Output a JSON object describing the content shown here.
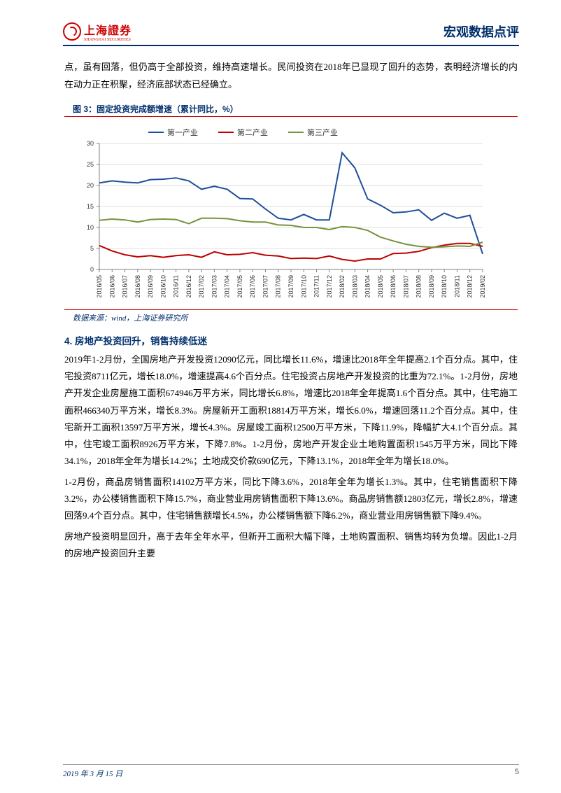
{
  "header": {
    "logo_text": "上海證券",
    "logo_sub": "SHANGHAI SECURITIES",
    "title": "宏观数据点评"
  },
  "intro_paragraph": "点，虽有回落，但仍高于全部投资，维持高速增长。民间投资在2018年已显现了回升的态势，表明经济增长的内在动力正在积聚，经济底部状态已经确立。",
  "chart": {
    "title": "图 3：固定投资完成额增速（累计同比，%）",
    "source": "数据来源：wind，上海证券研究所",
    "type": "line",
    "background_color": "#ffffff",
    "grid_color": "#bfbfbf",
    "axis_color": "#808080",
    "ylim": [
      0,
      30
    ],
    "ytick_step": 5,
    "yticks": [
      0,
      5,
      10,
      15,
      20,
      25,
      30
    ],
    "y_fontsize": 9,
    "x_fontsize": 9,
    "legend_fontsize": 11,
    "line_width": 2,
    "marker": "none",
    "x_labels": [
      "2016/05",
      "2016/06",
      "2016/07",
      "2016/08",
      "2016/09",
      "2016/10",
      "2016/11",
      "2016/12",
      "2017/02",
      "2017/03",
      "2017/04",
      "2017/05",
      "2017/06",
      "2017/07",
      "2017/08",
      "2017/09",
      "2017/10",
      "2017/11",
      "2017/12",
      "2018/02",
      "2018/03",
      "2018/04",
      "2018/05",
      "2018/06",
      "2018/07",
      "2018/08",
      "2018/09",
      "2018/10",
      "2018/11",
      "2018/12",
      "2019/02"
    ],
    "series": [
      {
        "name": "第一产业",
        "color": "#1f4e9c",
        "values": [
          20.6,
          21.1,
          20.8,
          20.6,
          21.4,
          21.5,
          21.8,
          21.1,
          19.1,
          19.8,
          19.1,
          16.9,
          16.8,
          14.4,
          12.2,
          11.8,
          13.1,
          11.8,
          11.8,
          27.8,
          24.2,
          16.8,
          15.3,
          13.5,
          13.7,
          14.2,
          11.7,
          13.4,
          12.2,
          12.9,
          3.7
        ]
      },
      {
        "name": "第二产业",
        "color": "#c00000",
        "values": [
          5.7,
          4.4,
          3.5,
          3.0,
          3.3,
          2.9,
          3.3,
          3.5,
          2.9,
          4.2,
          3.5,
          3.6,
          4.0,
          3.4,
          3.2,
          2.6,
          2.7,
          2.6,
          3.2,
          2.4,
          2.0,
          2.5,
          2.5,
          3.8,
          3.9,
          4.3,
          5.2,
          5.8,
          6.2,
          6.2,
          5.5
        ]
      },
      {
        "name": "第三产业",
        "color": "#77933c",
        "values": [
          11.7,
          12.0,
          11.8,
          11.3,
          11.9,
          12.0,
          11.9,
          10.9,
          12.2,
          12.2,
          12.1,
          11.6,
          11.3,
          11.3,
          10.6,
          10.5,
          10.0,
          10.0,
          9.5,
          10.2,
          10.0,
          9.3,
          7.7,
          6.8,
          6.0,
          5.5,
          5.3,
          5.4,
          5.6,
          5.5,
          6.5
        ]
      }
    ],
    "legend_position": "top"
  },
  "section": {
    "heading": "4. 房地产投资回升，销售持续低迷",
    "p1": "2019年1-2月份，全国房地产开发投资12090亿元，同比增长11.6%，增速比2018年全年提高2.1个百分点。其中，住宅投资8711亿元，增长18.0%，增速提高4.6个百分点。住宅投资占房地产开发投资的比重为72.1%。1-2月份，房地产开发企业房屋施工面积674946万平方米，同比增长6.8%，增速比2018年全年提高1.6个百分点。其中，住宅施工面积466340万平方米，增长8.3%。房屋新开工面积18814万平方米，增长6.0%，增速回落11.2个百分点。其中，住宅新开工面积13597万平方米，增长4.3%。房屋竣工面积12500万平方米，下降11.9%，降幅扩大4.1个百分点。其中，住宅竣工面积8926万平方米，下降7.8%。1-2月份，房地产开发企业土地购置面积1545万平方米，同比下降34.1%，2018年全年为增长14.2%；土地成交价款690亿元，下降13.1%，2018年全年为增长18.0%。",
    "p2": "1-2月份，商品房销售面积14102万平方米，同比下降3.6%，2018年全年为增长1.3%。其中，住宅销售面积下降3.2%，办公楼销售面积下降15.7%，商业营业用房销售面积下降13.6%。商品房销售额12803亿元，增长2.8%，增速回落9.4个百分点。其中，住宅销售额增长4.5%，办公楼销售额下降6.2%，商业营业用房销售额下降9.4%。",
    "p3": "房地产投资明显回升，高于去年全年水平，但新开工面积大幅下降，土地购置面积、销售均转为负增。因此1-2月的房地产投资回升主要"
  },
  "footer": {
    "date": "2019 年 3 月 15 日",
    "page": "5"
  }
}
